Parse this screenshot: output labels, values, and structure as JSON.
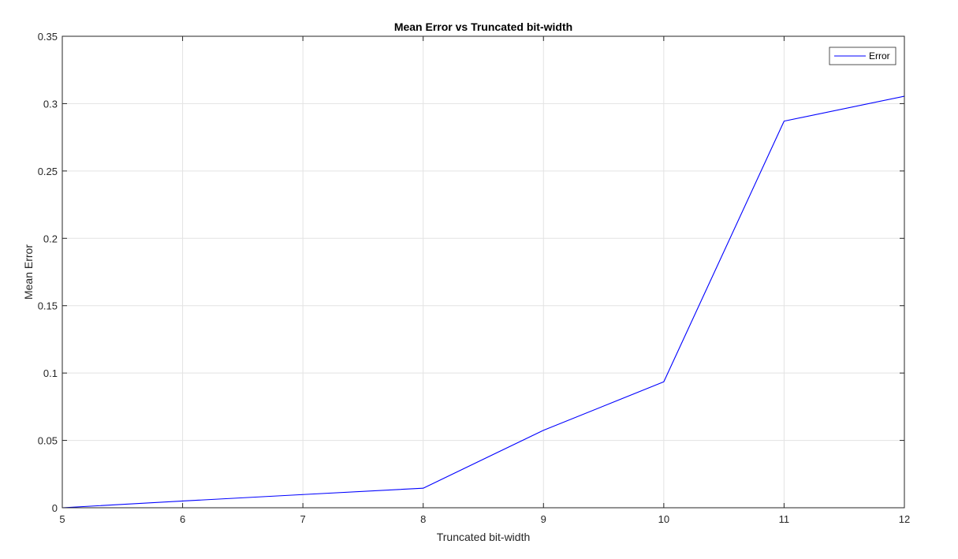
{
  "chart_data": {
    "type": "line",
    "title": "Mean Error vs Truncated bit-width",
    "xlabel": "Truncated bit-width",
    "ylabel": "Mean Error",
    "xlim": [
      5,
      12
    ],
    "ylim": [
      0,
      0.35
    ],
    "xticks": [
      "5",
      "6",
      "7",
      "8",
      "9",
      "10",
      "11",
      "12"
    ],
    "yticks": [
      "0",
      "0.05",
      "0.1",
      "0.15",
      "0.2",
      "0.25",
      "0.3",
      "0.35"
    ],
    "grid": true,
    "legend_position": "top-right",
    "series": [
      {
        "name": "Error",
        "color": "#0000ff",
        "x": [
          5,
          6,
          7,
          8,
          9,
          10,
          11,
          12
        ],
        "y": [
          0,
          0.005,
          0.0098,
          0.0145,
          0.0575,
          0.0935,
          0.287,
          0.3055
        ]
      }
    ]
  }
}
